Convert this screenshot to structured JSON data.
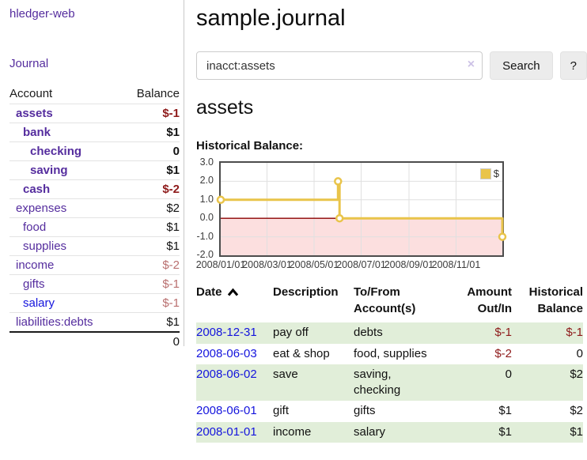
{
  "app": {
    "brand": "hledger-web",
    "journal_link": "Journal"
  },
  "colors": {
    "accent_purple": "#552d9e",
    "link_blue": "#1414dd",
    "negative_strong": "#8e1a1a",
    "negative_soft": "#b96f6f",
    "row_stripe_green": "#e1eed9",
    "chart_series_gold": "#e9c44a",
    "chart_negative_region": "#fcdfdf",
    "chart_zero_line": "#8b0000",
    "chart_grid": "#e0e0e0"
  },
  "sidebar": {
    "headers": {
      "account": "Account",
      "balance": "Balance"
    },
    "accounts": [
      {
        "name": "assets",
        "indent": 1,
        "bold": true,
        "balance": "$-1",
        "balance_class": "neg"
      },
      {
        "name": "bank",
        "indent": 2,
        "bold": true,
        "balance": "$1",
        "balance_class": ""
      },
      {
        "name": "checking",
        "indent": 3,
        "bold": true,
        "balance": "0",
        "balance_class": ""
      },
      {
        "name": "saving",
        "indent": 3,
        "bold": true,
        "balance": "$1",
        "balance_class": ""
      },
      {
        "name": "cash",
        "indent": 2,
        "bold": true,
        "balance": "$-2",
        "balance_class": "neg"
      },
      {
        "name": "expenses",
        "indent": 1,
        "bold": false,
        "balance": "$2",
        "balance_class": ""
      },
      {
        "name": "food",
        "indent": 2,
        "bold": false,
        "balance": "$1",
        "balance_class": ""
      },
      {
        "name": "supplies",
        "indent": 2,
        "bold": false,
        "balance": "$1",
        "balance_class": ""
      },
      {
        "name": "income",
        "indent": 1,
        "bold": false,
        "balance": "$-2",
        "balance_class": "neg-soft"
      },
      {
        "name": "gifts",
        "indent": 2,
        "bold": false,
        "balance": "$-1",
        "balance_class": "neg-soft"
      },
      {
        "name": "salary",
        "indent": 2,
        "bold": false,
        "balance": "$-1",
        "balance_class": "neg-soft",
        "link": "blue"
      },
      {
        "name": "liabilities:debts",
        "indent": 1,
        "bold": false,
        "balance": "$1",
        "balance_class": ""
      }
    ],
    "total": "0"
  },
  "header": {
    "title": "sample.journal"
  },
  "search": {
    "value": "inacct:assets",
    "clear_icon": "×",
    "button_label": "Search",
    "help_label": "?"
  },
  "account_page": {
    "heading": "assets",
    "chart_label": "Historical Balance:"
  },
  "chart_data": {
    "type": "line",
    "title": "Historical Balance:",
    "step": true,
    "series": [
      {
        "name": "$",
        "points": [
          [
            "2008/01/01",
            1
          ],
          [
            "2008/06/01",
            2
          ],
          [
            "2008/06/03",
            0
          ],
          [
            "2008/12/31",
            -1
          ]
        ]
      }
    ],
    "xrange": [
      "2008/01/01",
      "2008/12/31"
    ],
    "ylim": [
      -2,
      3
    ],
    "yticks": [
      "3.0",
      "2.0",
      "1.0",
      "0.0",
      "-1.0",
      "-2.0"
    ],
    "xticks": [
      "2008/01/01",
      "2008/03/01",
      "2008/05/01",
      "2008/07/01",
      "2008/09/01",
      "2008/11/01"
    ],
    "grid": true,
    "legend": {
      "position": "top-right",
      "label": "$"
    },
    "negative_region": true,
    "zero_line": true
  },
  "register": {
    "columns": [
      {
        "label": "Date",
        "align": "al",
        "sorted": "asc"
      },
      {
        "label": "Description",
        "align": "al"
      },
      {
        "label": "To/From Account(s)",
        "align": "al"
      },
      {
        "label": "Amount Out/In",
        "align": "ar"
      },
      {
        "label": "Historical Balance",
        "align": "ar"
      }
    ],
    "rows": [
      {
        "date": "2008-12-31",
        "description": "pay off",
        "accounts": "debts",
        "amount": "$-1",
        "amount_neg": true,
        "balance": "$-1",
        "balance_neg": true
      },
      {
        "date": "2008-06-03",
        "description": "eat & shop",
        "accounts": "food, supplies",
        "amount": "$-2",
        "amount_neg": true,
        "balance": "0",
        "balance_neg": false
      },
      {
        "date": "2008-06-02",
        "description": "save",
        "accounts": "saving, checking",
        "amount": "0",
        "amount_neg": false,
        "balance": "$2",
        "balance_neg": false
      },
      {
        "date": "2008-06-01",
        "description": "gift",
        "accounts": "gifts",
        "amount": "$1",
        "amount_neg": false,
        "balance": "$2",
        "balance_neg": false
      },
      {
        "date": "2008-01-01",
        "description": "income",
        "accounts": "salary",
        "amount": "$1",
        "amount_neg": false,
        "balance": "$1",
        "balance_neg": false
      }
    ]
  }
}
